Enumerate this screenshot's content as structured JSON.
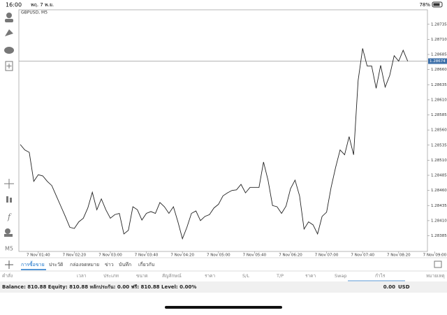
{
  "status_bar": {
    "time": "16:00",
    "date": "พฤ. 7 พ.ย.",
    "battery": "78%"
  },
  "chart_data": {
    "type": "line",
    "title": "GBPUSD, M5",
    "color": "#222222",
    "categories": [
      null,
      null,
      null,
      null,
      "7 Nov 01:40",
      null,
      null,
      null,
      null,
      null,
      null,
      null,
      "7 Nov 02:20",
      null,
      null,
      null,
      null,
      null,
      null,
      null,
      "7 Nov 03:00",
      null,
      null,
      null,
      null,
      null,
      null,
      null,
      "7 Nov 03:40",
      null,
      null,
      null,
      null,
      null,
      null,
      null,
      "7 Nov 04:20",
      null,
      null,
      null,
      null,
      null,
      null,
      null,
      "7 Nov 05:00",
      null,
      null,
      null,
      null,
      null,
      null,
      null,
      "7 Nov 05:40",
      null,
      null,
      null,
      null,
      null,
      null,
      null,
      "7 Nov 06:20",
      null,
      null,
      null,
      null,
      null,
      null,
      null,
      "7 Nov 07:00",
      null,
      null,
      null,
      null,
      null,
      null,
      null,
      "7 Nov 07:40",
      null,
      null,
      null,
      null,
      null,
      null,
      null,
      "7 Nov 08:20",
      null,
      null,
      null,
      null,
      null,
      null,
      null,
      "7 Nov 09:00"
    ],
    "values": [
      1.28536,
      1.28527,
      1.28523,
      1.28475,
      1.28486,
      1.28484,
      1.28475,
      1.28468,
      1.28451,
      1.28434,
      1.28417,
      1.28399,
      1.28397,
      1.28408,
      1.28414,
      1.28431,
      1.28457,
      1.28428,
      1.28446,
      1.28428,
      1.28414,
      1.2842,
      1.28422,
      1.28388,
      1.28394,
      1.28433,
      1.28428,
      1.28411,
      1.28422,
      1.28425,
      1.28422,
      1.2844,
      1.28433,
      1.28422,
      1.28433,
      1.28408,
      1.2838,
      1.28399,
      1.28422,
      1.28426,
      1.2841,
      1.28417,
      1.2842,
      1.28431,
      1.28437,
      1.28451,
      1.28456,
      1.2846,
      1.28461,
      1.2847,
      1.28456,
      1.28465,
      1.28465,
      1.28465,
      1.28507,
      1.28477,
      1.28435,
      1.28433,
      1.28422,
      1.28434,
      1.28463,
      1.28477,
      1.28451,
      1.28396,
      1.28408,
      1.28403,
      1.28388,
      1.28417,
      1.28424,
      1.28465,
      1.28498,
      1.28527,
      1.28519,
      1.28549,
      1.28519,
      1.28642,
      1.28695,
      1.28666,
      1.28666,
      1.28629,
      1.28667,
      1.28631,
      1.2865,
      1.28683,
      1.28674,
      1.28692,
      1.28674,
      null,
      null,
      null,
      null,
      null,
      null
    ],
    "ylim": [
      1.28359,
      1.28759
    ],
    "yticks": [
      1.28735,
      {
        "value": 1.2871,
        "label": "1.28710"
      },
      1.28685,
      {
        "value": 1.2866,
        "label": "1.28660"
      },
      1.28635,
      {
        "value": 1.2861,
        "label": "1.28610"
      },
      1.28585,
      {
        "value": 1.2856,
        "label": "1.28560"
      },
      1.28535,
      {
        "value": 1.2851,
        "label": "1.28510"
      },
      1.28485,
      {
        "value": 1.2846,
        "label": "1.28460"
      },
      1.28435,
      {
        "value": 1.2841,
        "label": "1.28410"
      },
      1.28385
    ],
    "last_price": 1.28674,
    "timeframe": "M5"
  },
  "tabs": [
    "การซื้อขาย",
    "ประวัติ",
    "กล่องจดหมาย",
    "ข่าว",
    "บันทึก",
    "เกี่ยวกับ"
  ],
  "table": {
    "headers": [
      "คำสั่ง",
      "เวลา",
      "ประเภท",
      "ขนาด",
      "สัญลักษณ์",
      "ราคา",
      "S/L",
      "T/P",
      "ราคา",
      "Swap",
      "กำไร",
      "หมายเหตุ"
    ],
    "summary": "Balance: 810.88 Equity: 810.88 หลักประกัน: 0.00 ฟรี: 810.88 Level: 0.00%",
    "profit": "0.00",
    "currency": "USD"
  }
}
